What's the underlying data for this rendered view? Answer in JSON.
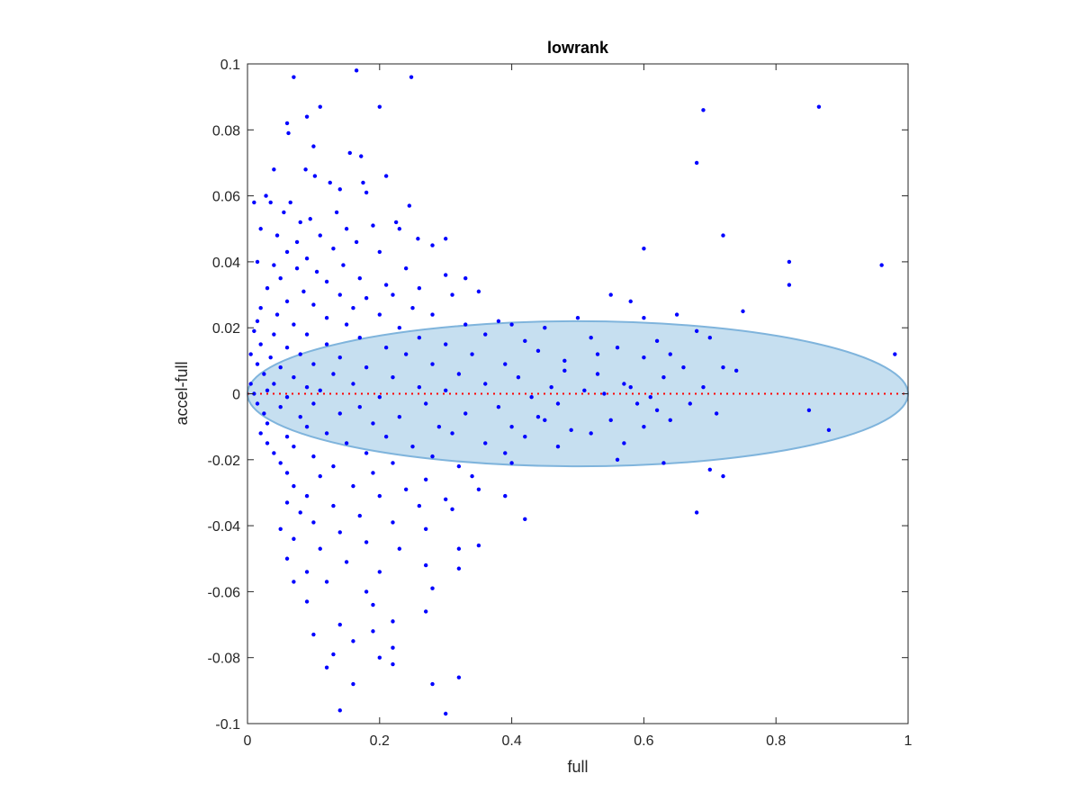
{
  "chart_data": {
    "type": "scatter",
    "title": "lowrank",
    "xlabel": "full",
    "ylabel": "accel-full",
    "xlim": [
      0,
      1
    ],
    "ylim": [
      -0.1,
      0.1
    ],
    "xticks": [
      0,
      0.2,
      0.4,
      0.6,
      0.8,
      1
    ],
    "xtick_labels": [
      "0",
      "0.2",
      "0.4",
      "0.6",
      "0.8",
      "1"
    ],
    "yticks": [
      -0.1,
      -0.08,
      -0.06,
      -0.04,
      -0.02,
      0,
      0.02,
      0.04,
      0.06,
      0.08,
      0.1
    ],
    "ytick_labels": [
      "-0.1",
      "-0.08",
      "-0.06",
      "-0.04",
      "-0.02",
      "0",
      "0.02",
      "0.04",
      "0.06",
      "0.08",
      "0.1"
    ],
    "grid": false,
    "zero_line": {
      "y": 0,
      "style": "dotted",
      "color": "#ff0000"
    },
    "ellipse": {
      "cx": 0.5,
      "cy": 0,
      "rx": 0.5,
      "ry": 0.022,
      "fill": "#c6dff0",
      "stroke": "#7fb4dc"
    },
    "colors": {
      "points": "#0000ff",
      "axes": "#262626"
    },
    "series": [
      {
        "points": [
          [
            0.07,
            0.096
          ],
          [
            0.165,
            0.098
          ],
          [
            0.248,
            0.096
          ],
          [
            0.11,
            0.087
          ],
          [
            0.2,
            0.087
          ],
          [
            0.09,
            0.084
          ],
          [
            0.06,
            0.082
          ],
          [
            0.062,
            0.079
          ],
          [
            0.1,
            0.075
          ],
          [
            0.172,
            0.072
          ],
          [
            0.155,
            0.073
          ],
          [
            0.04,
            0.068
          ],
          [
            0.088,
            0.068
          ],
          [
            0.102,
            0.066
          ],
          [
            0.21,
            0.066
          ],
          [
            0.125,
            0.064
          ],
          [
            0.175,
            0.064
          ],
          [
            0.028,
            0.06
          ],
          [
            0.035,
            0.058
          ],
          [
            0.065,
            0.058
          ],
          [
            0.14,
            0.062
          ],
          [
            0.18,
            0.061
          ],
          [
            0.01,
            0.058
          ],
          [
            0.245,
            0.057
          ],
          [
            0.055,
            0.055
          ],
          [
            0.08,
            0.052
          ],
          [
            0.095,
            0.053
          ],
          [
            0.135,
            0.055
          ],
          [
            0.225,
            0.052
          ],
          [
            0.15,
            0.05
          ],
          [
            0.02,
            0.05
          ],
          [
            0.045,
            0.048
          ],
          [
            0.075,
            0.046
          ],
          [
            0.11,
            0.048
          ],
          [
            0.19,
            0.051
          ],
          [
            0.23,
            0.05
          ],
          [
            0.258,
            0.047
          ],
          [
            0.3,
            0.047
          ],
          [
            0.165,
            0.046
          ],
          [
            0.13,
            0.044
          ],
          [
            0.06,
            0.043
          ],
          [
            0.09,
            0.041
          ],
          [
            0.2,
            0.043
          ],
          [
            0.28,
            0.045
          ],
          [
            0.015,
            0.04
          ],
          [
            0.04,
            0.039
          ],
          [
            0.075,
            0.038
          ],
          [
            0.105,
            0.037
          ],
          [
            0.145,
            0.039
          ],
          [
            0.24,
            0.038
          ],
          [
            0.3,
            0.036
          ],
          [
            0.33,
            0.035
          ],
          [
            0.05,
            0.035
          ],
          [
            0.12,
            0.034
          ],
          [
            0.17,
            0.035
          ],
          [
            0.21,
            0.033
          ],
          [
            0.26,
            0.032
          ],
          [
            0.03,
            0.032
          ],
          [
            0.085,
            0.031
          ],
          [
            0.14,
            0.03
          ],
          [
            0.18,
            0.029
          ],
          [
            0.22,
            0.03
          ],
          [
            0.31,
            0.03
          ],
          [
            0.06,
            0.028
          ],
          [
            0.1,
            0.027
          ],
          [
            0.16,
            0.026
          ],
          [
            0.25,
            0.026
          ],
          [
            0.35,
            0.031
          ],
          [
            0.02,
            0.026
          ],
          [
            0.045,
            0.024
          ],
          [
            0.12,
            0.023
          ],
          [
            0.2,
            0.024
          ],
          [
            0.28,
            0.024
          ],
          [
            0.015,
            0.022
          ],
          [
            0.07,
            0.021
          ],
          [
            0.15,
            0.021
          ],
          [
            0.23,
            0.02
          ],
          [
            0.33,
            0.021
          ],
          [
            0.38,
            0.022
          ],
          [
            0.4,
            0.021
          ],
          [
            0.01,
            0.019
          ],
          [
            0.04,
            0.018
          ],
          [
            0.09,
            0.018
          ],
          [
            0.17,
            0.017
          ],
          [
            0.26,
            0.017
          ],
          [
            0.36,
            0.018
          ],
          [
            0.45,
            0.02
          ],
          [
            0.5,
            0.023
          ],
          [
            0.55,
            0.03
          ],
          [
            0.58,
            0.028
          ],
          [
            0.6,
            0.023
          ],
          [
            0.65,
            0.024
          ],
          [
            0.75,
            0.025
          ],
          [
            0.68,
            0.019
          ],
          [
            0.02,
            0.015
          ],
          [
            0.06,
            0.014
          ],
          [
            0.12,
            0.015
          ],
          [
            0.21,
            0.014
          ],
          [
            0.3,
            0.015
          ],
          [
            0.42,
            0.016
          ],
          [
            0.52,
            0.017
          ],
          [
            0.62,
            0.016
          ],
          [
            0.7,
            0.017
          ],
          [
            0.005,
            0.012
          ],
          [
            0.035,
            0.011
          ],
          [
            0.08,
            0.012
          ],
          [
            0.14,
            0.011
          ],
          [
            0.24,
            0.012
          ],
          [
            0.34,
            0.012
          ],
          [
            0.44,
            0.013
          ],
          [
            0.56,
            0.014
          ],
          [
            0.64,
            0.012
          ],
          [
            0.98,
            0.012
          ],
          [
            0.015,
            0.009
          ],
          [
            0.05,
            0.008
          ],
          [
            0.1,
            0.009
          ],
          [
            0.18,
            0.008
          ],
          [
            0.28,
            0.009
          ],
          [
            0.39,
            0.009
          ],
          [
            0.48,
            0.01
          ],
          [
            0.6,
            0.011
          ],
          [
            0.66,
            0.008
          ],
          [
            0.72,
            0.008
          ],
          [
            0.74,
            0.007
          ],
          [
            0.025,
            0.006
          ],
          [
            0.07,
            0.005
          ],
          [
            0.13,
            0.006
          ],
          [
            0.22,
            0.005
          ],
          [
            0.32,
            0.006
          ],
          [
            0.41,
            0.005
          ],
          [
            0.53,
            0.006
          ],
          [
            0.63,
            0.005
          ],
          [
            0.005,
            0.003
          ],
          [
            0.04,
            0.003
          ],
          [
            0.09,
            0.002
          ],
          [
            0.16,
            0.003
          ],
          [
            0.26,
            0.002
          ],
          [
            0.36,
            0.003
          ],
          [
            0.46,
            0.002
          ],
          [
            0.57,
            0.003
          ],
          [
            0.69,
            0.002
          ],
          [
            0.01,
            0.0
          ],
          [
            0.03,
            0.001
          ],
          [
            0.06,
            -0.001
          ],
          [
            0.11,
            0.001
          ],
          [
            0.2,
            -0.001
          ],
          [
            0.3,
            0.001
          ],
          [
            0.43,
            -0.001
          ],
          [
            0.51,
            0.001
          ],
          [
            0.61,
            -0.001
          ],
          [
            0.015,
            -0.003
          ],
          [
            0.05,
            -0.004
          ],
          [
            0.1,
            -0.003
          ],
          [
            0.17,
            -0.004
          ],
          [
            0.27,
            -0.003
          ],
          [
            0.38,
            -0.004
          ],
          [
            0.47,
            -0.003
          ],
          [
            0.59,
            -0.003
          ],
          [
            0.67,
            -0.003
          ],
          [
            0.85,
            -0.005
          ],
          [
            0.025,
            -0.006
          ],
          [
            0.08,
            -0.007
          ],
          [
            0.14,
            -0.006
          ],
          [
            0.23,
            -0.007
          ],
          [
            0.33,
            -0.006
          ],
          [
            0.44,
            -0.007
          ],
          [
            0.55,
            -0.008
          ],
          [
            0.64,
            -0.008
          ],
          [
            0.71,
            -0.006
          ],
          [
            0.03,
            -0.009
          ],
          [
            0.09,
            -0.01
          ],
          [
            0.19,
            -0.009
          ],
          [
            0.29,
            -0.01
          ],
          [
            0.4,
            -0.01
          ],
          [
            0.49,
            -0.011
          ],
          [
            0.6,
            -0.01
          ],
          [
            0.88,
            -0.011
          ],
          [
            0.02,
            -0.012
          ],
          [
            0.06,
            -0.013
          ],
          [
            0.12,
            -0.012
          ],
          [
            0.21,
            -0.013
          ],
          [
            0.31,
            -0.012
          ],
          [
            0.42,
            -0.013
          ],
          [
            0.03,
            -0.015
          ],
          [
            0.07,
            -0.016
          ],
          [
            0.15,
            -0.015
          ],
          [
            0.25,
            -0.016
          ],
          [
            0.36,
            -0.015
          ],
          [
            0.47,
            -0.016
          ],
          [
            0.04,
            -0.018
          ],
          [
            0.1,
            -0.019
          ],
          [
            0.18,
            -0.018
          ],
          [
            0.28,
            -0.019
          ],
          [
            0.39,
            -0.018
          ],
          [
            0.05,
            -0.021
          ],
          [
            0.13,
            -0.022
          ],
          [
            0.22,
            -0.021
          ],
          [
            0.32,
            -0.022
          ],
          [
            0.4,
            -0.021
          ],
          [
            0.56,
            -0.02
          ],
          [
            0.63,
            -0.021
          ],
          [
            0.7,
            -0.023
          ],
          [
            0.72,
            -0.025
          ],
          [
            0.06,
            -0.024
          ],
          [
            0.11,
            -0.025
          ],
          [
            0.19,
            -0.024
          ],
          [
            0.27,
            -0.026
          ],
          [
            0.34,
            -0.025
          ],
          [
            0.07,
            -0.028
          ],
          [
            0.16,
            -0.028
          ],
          [
            0.24,
            -0.029
          ],
          [
            0.35,
            -0.029
          ],
          [
            0.09,
            -0.031
          ],
          [
            0.2,
            -0.031
          ],
          [
            0.3,
            -0.032
          ],
          [
            0.39,
            -0.031
          ],
          [
            0.06,
            -0.033
          ],
          [
            0.13,
            -0.034
          ],
          [
            0.26,
            -0.034
          ],
          [
            0.08,
            -0.036
          ],
          [
            0.17,
            -0.037
          ],
          [
            0.31,
            -0.035
          ],
          [
            0.42,
            -0.038
          ],
          [
            0.68,
            -0.036
          ],
          [
            0.1,
            -0.039
          ],
          [
            0.22,
            -0.039
          ],
          [
            0.05,
            -0.041
          ],
          [
            0.14,
            -0.042
          ],
          [
            0.27,
            -0.041
          ],
          [
            0.07,
            -0.044
          ],
          [
            0.18,
            -0.045
          ],
          [
            0.11,
            -0.047
          ],
          [
            0.23,
            -0.047
          ],
          [
            0.32,
            -0.047
          ],
          [
            0.35,
            -0.046
          ],
          [
            0.06,
            -0.05
          ],
          [
            0.15,
            -0.051
          ],
          [
            0.27,
            -0.052
          ],
          [
            0.09,
            -0.054
          ],
          [
            0.2,
            -0.054
          ],
          [
            0.07,
            -0.057
          ],
          [
            0.12,
            -0.057
          ],
          [
            0.32,
            -0.053
          ],
          [
            0.18,
            -0.06
          ],
          [
            0.28,
            -0.059
          ],
          [
            0.09,
            -0.063
          ],
          [
            0.19,
            -0.064
          ],
          [
            0.27,
            -0.066
          ],
          [
            0.22,
            -0.069
          ],
          [
            0.14,
            -0.07
          ],
          [
            0.1,
            -0.073
          ],
          [
            0.19,
            -0.072
          ],
          [
            0.16,
            -0.075
          ],
          [
            0.22,
            -0.077
          ],
          [
            0.13,
            -0.079
          ],
          [
            0.2,
            -0.08
          ],
          [
            0.12,
            -0.083
          ],
          [
            0.22,
            -0.082
          ],
          [
            0.32,
            -0.086
          ],
          [
            0.16,
            -0.088
          ],
          [
            0.28,
            -0.088
          ],
          [
            0.14,
            -0.096
          ],
          [
            0.3,
            -0.097
          ],
          [
            0.69,
            0.086
          ],
          [
            0.865,
            0.087
          ],
          [
            0.68,
            0.07
          ],
          [
            0.6,
            0.044
          ],
          [
            0.72,
            0.048
          ],
          [
            0.82,
            0.04
          ],
          [
            0.82,
            0.033
          ],
          [
            0.96,
            0.039
          ],
          [
            0.54,
            0.0
          ],
          [
            0.58,
            0.002
          ],
          [
            0.62,
            -0.005
          ],
          [
            0.52,
            -0.012
          ],
          [
            0.57,
            -0.015
          ],
          [
            0.45,
            -0.008
          ],
          [
            0.48,
            0.007
          ],
          [
            0.53,
            0.012
          ]
        ]
      }
    ]
  }
}
